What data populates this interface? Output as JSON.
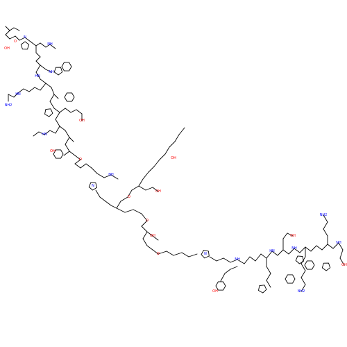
{
  "colors": {
    "bond": "#000000",
    "oxygen": "#ff0000",
    "nitrogen": "#0000ff",
    "carbon": "#000000"
  },
  "labels": {
    "oxygen": "O",
    "hydroxyl": "OH",
    "amine_h": "HN",
    "amide_nh": "NH",
    "nitrogen": "N",
    "amino": "NH2",
    "imine": "HN",
    "methoxy_o": "O",
    "carboxyl_oh": "OH"
  }
}
